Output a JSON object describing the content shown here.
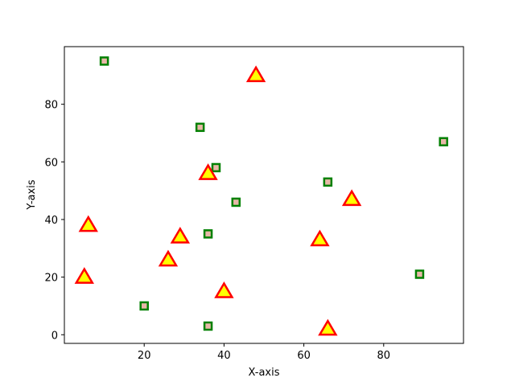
{
  "chart_data": {
    "type": "scatter",
    "title": "",
    "xlabel": "X-axis",
    "ylabel": "Y-axis",
    "xlim": [
      0,
      100
    ],
    "ylim": [
      -3,
      100
    ],
    "xticks": [
      20,
      40,
      60,
      80
    ],
    "yticks": [
      0,
      20,
      40,
      60,
      80
    ],
    "grid": false,
    "legend": null,
    "series": [
      {
        "name": "squares",
        "marker": "square",
        "face_color": "#e8b8a8",
        "edge_color": "#008000",
        "points": [
          {
            "x": 10,
            "y": 95
          },
          {
            "x": 34,
            "y": 72
          },
          {
            "x": 38,
            "y": 58
          },
          {
            "x": 43,
            "y": 46
          },
          {
            "x": 66,
            "y": 53
          },
          {
            "x": 95,
            "y": 67
          },
          {
            "x": 36,
            "y": 35
          },
          {
            "x": 89,
            "y": 21
          },
          {
            "x": 20,
            "y": 10
          },
          {
            "x": 36,
            "y": 3
          }
        ]
      },
      {
        "name": "triangles",
        "marker": "triangle",
        "face_color": "#ffff00",
        "edge_color": "#ff0000",
        "points": [
          {
            "x": 48,
            "y": 90
          },
          {
            "x": 36,
            "y": 56
          },
          {
            "x": 72,
            "y": 47
          },
          {
            "x": 6,
            "y": 38
          },
          {
            "x": 29,
            "y": 34
          },
          {
            "x": 64,
            "y": 33
          },
          {
            "x": 26,
            "y": 26
          },
          {
            "x": 5,
            "y": 20
          },
          {
            "x": 40,
            "y": 15
          },
          {
            "x": 66,
            "y": 2
          }
        ]
      }
    ]
  }
}
